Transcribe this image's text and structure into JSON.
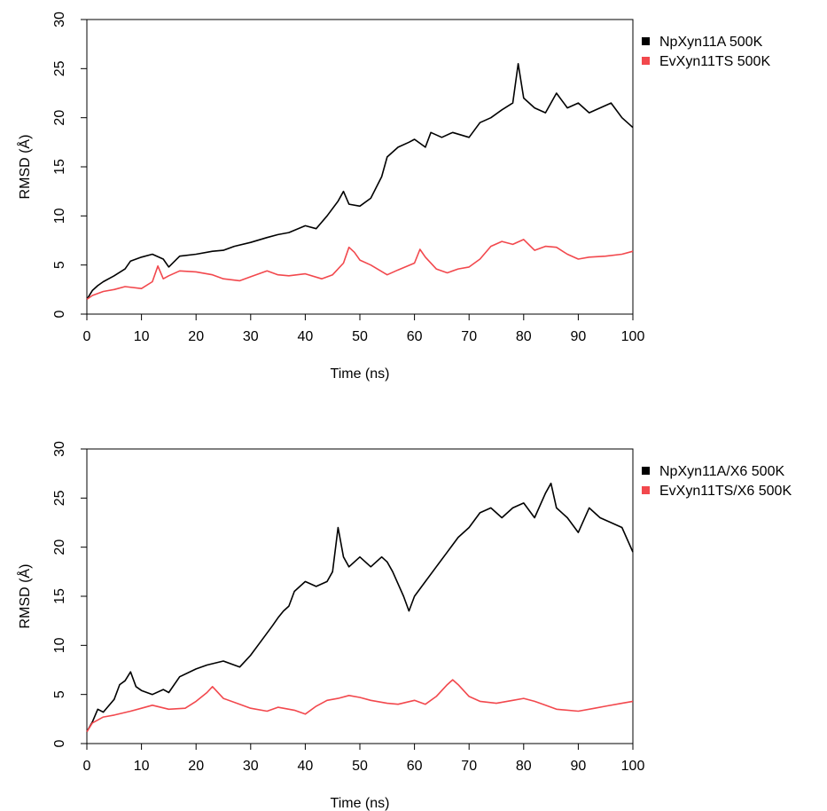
{
  "chart_data": [
    {
      "type": "line",
      "xlabel": "Time (ns)",
      "ylabel": "RMSD",
      "ylabel_unit": "(Å)",
      "xlim": [
        0,
        100
      ],
      "ylim": [
        0,
        30
      ],
      "x_ticks": [
        0,
        10,
        20,
        30,
        40,
        50,
        60,
        70,
        80,
        90,
        100
      ],
      "y_ticks": [
        0,
        5,
        10,
        15,
        20,
        25,
        30
      ],
      "grid": false,
      "legend_position": "top-right, outside plot",
      "series": [
        {
          "name": "NpXyn11A 500K",
          "color": "#000000",
          "x": [
            0,
            1,
            2,
            3,
            5,
            7,
            8,
            10,
            12,
            14,
            15,
            17,
            20,
            23,
            25,
            27,
            30,
            33,
            35,
            37,
            40,
            42,
            44,
            46,
            47,
            48,
            50,
            52,
            54,
            55,
            57,
            59,
            60,
            62,
            63,
            65,
            67,
            70,
            72,
            74,
            76,
            78,
            79,
            80,
            82,
            84,
            86,
            88,
            90,
            92,
            94,
            96,
            98,
            100
          ],
          "y": [
            1.5,
            2.4,
            2.9,
            3.3,
            3.9,
            4.6,
            5.4,
            5.8,
            6.1,
            5.6,
            4.8,
            5.9,
            6.1,
            6.4,
            6.5,
            6.9,
            7.3,
            7.8,
            8.1,
            8.3,
            9.0,
            8.7,
            10.0,
            11.5,
            12.5,
            11.2,
            11.0,
            11.8,
            14.0,
            16.0,
            17.0,
            17.5,
            17.8,
            17.0,
            18.5,
            18.0,
            18.5,
            18.0,
            19.5,
            20.0,
            20.8,
            21.5,
            25.5,
            22.0,
            21.0,
            20.5,
            22.5,
            21.0,
            21.5,
            20.5,
            21.0,
            21.5,
            20.0,
            19.0
          ]
        },
        {
          "name": "EvXyn11TS 500K",
          "color": "#f2484d",
          "x": [
            0,
            1,
            3,
            5,
            7,
            10,
            12,
            13,
            14,
            15,
            17,
            20,
            23,
            25,
            28,
            30,
            33,
            35,
            37,
            40,
            43,
            45,
            47,
            48,
            49,
            50,
            52,
            55,
            57,
            60,
            61,
            62,
            64,
            66,
            68,
            70,
            72,
            74,
            76,
            78,
            80,
            82,
            84,
            86,
            88,
            90,
            92,
            95,
            98,
            100
          ],
          "y": [
            1.5,
            1.9,
            2.3,
            2.5,
            2.8,
            2.6,
            3.3,
            4.9,
            3.6,
            3.9,
            4.4,
            4.3,
            4.0,
            3.6,
            3.4,
            3.8,
            4.4,
            4.0,
            3.9,
            4.1,
            3.6,
            4.0,
            5.2,
            6.8,
            6.3,
            5.5,
            5.0,
            4.0,
            4.5,
            5.2,
            6.6,
            5.8,
            4.6,
            4.2,
            4.6,
            4.8,
            5.6,
            6.9,
            7.4,
            7.1,
            7.6,
            6.5,
            6.9,
            6.8,
            6.1,
            5.6,
            5.8,
            5.9,
            6.1,
            6.4
          ]
        }
      ]
    },
    {
      "type": "line",
      "xlabel": "Time (ns)",
      "ylabel": "RMSD",
      "ylabel_unit": "(Å)",
      "xlim": [
        0,
        100
      ],
      "ylim": [
        0,
        30
      ],
      "x_ticks": [
        0,
        10,
        20,
        30,
        40,
        50,
        60,
        70,
        80,
        90,
        100
      ],
      "y_ticks": [
        0,
        5,
        10,
        15,
        20,
        25,
        30
      ],
      "grid": false,
      "legend_position": "top-right, outside plot",
      "series": [
        {
          "name": "NpXyn11A/X6 500K",
          "color": "#000000",
          "x": [
            0,
            1,
            2,
            3,
            5,
            6,
            7,
            8,
            9,
            10,
            12,
            14,
            15,
            17,
            20,
            22,
            25,
            27,
            28,
            30,
            32,
            34,
            35,
            36,
            37,
            38,
            40,
            42,
            44,
            45,
            46,
            47,
            48,
            50,
            52,
            54,
            55,
            56,
            58,
            59,
            60,
            62,
            64,
            66,
            68,
            70,
            72,
            74,
            76,
            78,
            80,
            82,
            84,
            85,
            86,
            88,
            90,
            92,
            94,
            96,
            98,
            100
          ],
          "y": [
            1.2,
            2.2,
            3.5,
            3.2,
            4.5,
            6.0,
            6.4,
            7.3,
            5.8,
            5.4,
            5.0,
            5.5,
            5.2,
            6.8,
            7.6,
            8.0,
            8.4,
            8.0,
            7.8,
            9.0,
            10.5,
            12.0,
            12.8,
            13.5,
            14.0,
            15.5,
            16.5,
            16.0,
            16.5,
            17.5,
            22.0,
            19.0,
            18.0,
            19.0,
            18.0,
            19.0,
            18.5,
            17.5,
            15.0,
            13.5,
            15.0,
            16.5,
            18.0,
            19.5,
            21.0,
            22.0,
            23.5,
            24.0,
            23.0,
            24.0,
            24.5,
            23.0,
            25.5,
            26.5,
            24.0,
            23.0,
            21.5,
            24.0,
            23.0,
            22.5,
            22.0,
            19.5
          ]
        },
        {
          "name": "EvXyn11TS/X6 500K",
          "color": "#f2484d",
          "x": [
            0,
            1,
            3,
            5,
            8,
            10,
            12,
            15,
            18,
            20,
            22,
            23,
            25,
            28,
            30,
            33,
            35,
            38,
            40,
            42,
            44,
            46,
            48,
            50,
            52,
            55,
            57,
            60,
            62,
            64,
            66,
            67,
            68,
            70,
            72,
            75,
            78,
            80,
            82,
            84,
            86,
            90,
            93,
            95,
            98,
            100
          ],
          "y": [
            1.2,
            2.1,
            2.7,
            2.9,
            3.3,
            3.6,
            3.9,
            3.5,
            3.6,
            4.3,
            5.2,
            5.8,
            4.6,
            4.0,
            3.6,
            3.3,
            3.7,
            3.4,
            3.0,
            3.8,
            4.4,
            4.6,
            4.9,
            4.7,
            4.4,
            4.1,
            4.0,
            4.4,
            4.0,
            4.8,
            6.0,
            6.5,
            6.0,
            4.8,
            4.3,
            4.1,
            4.4,
            4.6,
            4.3,
            3.9,
            3.5,
            3.3,
            3.6,
            3.8,
            4.1,
            4.3
          ]
        }
      ]
    }
  ]
}
